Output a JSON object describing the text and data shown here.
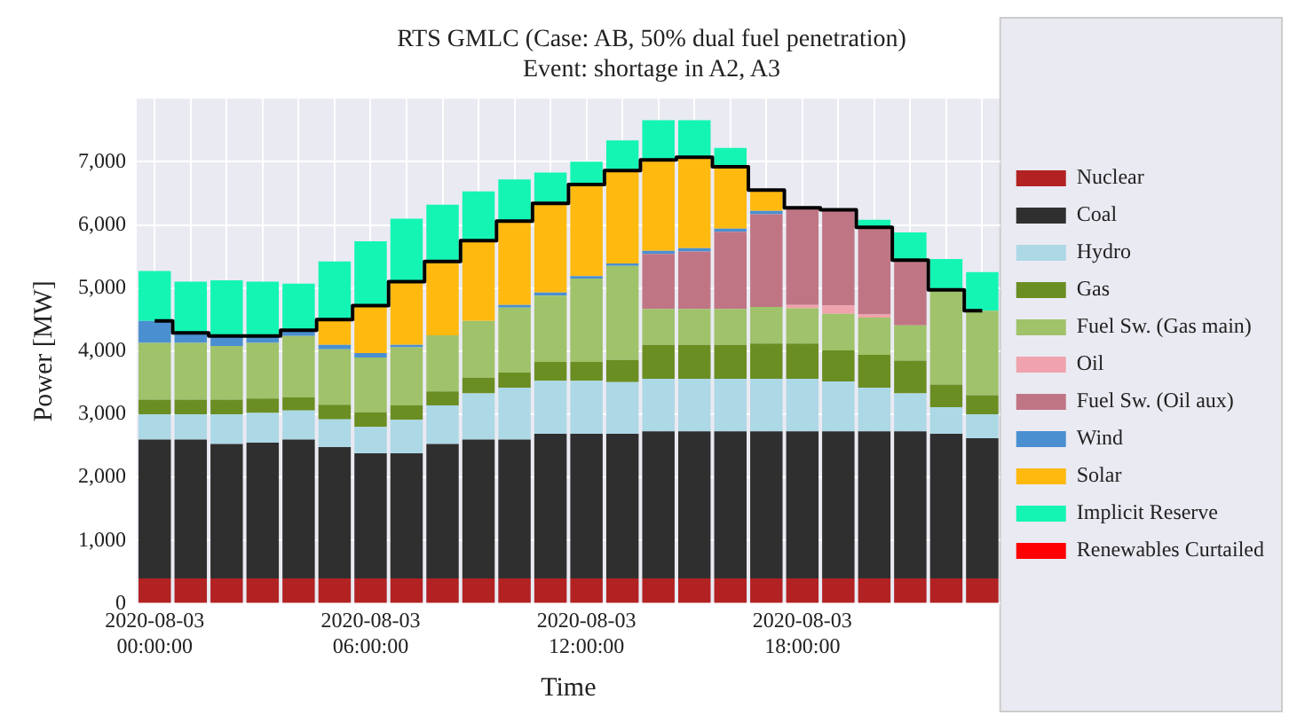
{
  "chart_data": {
    "type": "bar",
    "stacked": true,
    "title": "RTS GMLC (Case: AB, 50% dual fuel penetration)",
    "subtitle": "Event: shortage in A2, A3",
    "xlabel": "Time",
    "ylabel": "Power [MW]",
    "categories": [
      "2020-08-03 00:00:00",
      null,
      null,
      null,
      null,
      null,
      "2020-08-03 06:00:00",
      null,
      null,
      null,
      null,
      null,
      "2020-08-03 12:00:00",
      null,
      null,
      null,
      null,
      null,
      "2020-08-03 18:00:00",
      null,
      null,
      null,
      null,
      null
    ],
    "series": [
      {
        "name": "Nuclear",
        "color": "#b22222",
        "values": [
          400,
          400,
          400,
          400,
          400,
          400,
          400,
          400,
          400,
          400,
          400,
          400,
          400,
          400,
          400,
          400,
          400,
          400,
          400,
          400,
          400,
          400,
          400,
          400
        ]
      },
      {
        "name": "Coal",
        "color": "#2f2f2f",
        "values": [
          2200,
          2200,
          2130,
          2150,
          2200,
          2080,
          1980,
          1980,
          2130,
          2200,
          2200,
          2290,
          2290,
          2290,
          2330,
          2330,
          2330,
          2330,
          2330,
          2330,
          2330,
          2330,
          2290,
          2220
        ]
      },
      {
        "name": "Hydro",
        "color": "#add8e6",
        "values": [
          400,
          400,
          470,
          470,
          460,
          440,
          420,
          530,
          610,
          730,
          820,
          840,
          840,
          820,
          830,
          830,
          830,
          830,
          830,
          790,
          690,
          600,
          420,
          380
        ]
      },
      {
        "name": "Gas",
        "color": "#6b8e23",
        "values": [
          230,
          230,
          230,
          230,
          210,
          230,
          230,
          230,
          220,
          250,
          240,
          300,
          300,
          350,
          540,
          540,
          540,
          560,
          560,
          490,
          520,
          520,
          360,
          300
        ]
      },
      {
        "name": "Fuel Sw. (Gas main)",
        "color": "#9fc26a",
        "values": [
          900,
          900,
          850,
          880,
          970,
          880,
          870,
          920,
          890,
          900,
          1030,
          1050,
          1320,
          1490,
          570,
          570,
          570,
          580,
          560,
          580,
          590,
          560,
          1500,
          1340
        ]
      },
      {
        "name": "Oil",
        "color": "#f0a3ac",
        "values": [
          0,
          0,
          0,
          0,
          0,
          0,
          0,
          0,
          0,
          0,
          0,
          0,
          0,
          0,
          0,
          0,
          0,
          0,
          50,
          130,
          50,
          0,
          0,
          0
        ]
      },
      {
        "name": "Fuel Sw. (Oil aux)",
        "color": "#c07585",
        "values": [
          0,
          0,
          0,
          0,
          0,
          0,
          0,
          0,
          0,
          0,
          0,
          0,
          0,
          0,
          870,
          910,
          1220,
          1470,
          1550,
          1540,
          1380,
          1030,
          0,
          0
        ]
      },
      {
        "name": "Wind",
        "color": "#4a8fd0",
        "values": [
          350,
          160,
          160,
          110,
          90,
          70,
          70,
          40,
          0,
          0,
          40,
          50,
          40,
          40,
          50,
          50,
          50,
          50,
          0,
          0,
          0,
          0,
          0,
          0
        ]
      },
      {
        "name": "Solar",
        "color": "#ffb90f",
        "values": [
          0,
          0,
          0,
          0,
          0,
          400,
          750,
          1000,
          1170,
          1270,
          1330,
          1410,
          1450,
          1460,
          1440,
          1440,
          990,
          330,
          0,
          0,
          0,
          0,
          0,
          0
        ]
      },
      {
        "name": "Implicit Reserve",
        "color": "#14f5b4",
        "values": [
          790,
          810,
          880,
          860,
          740,
          920,
          1020,
          1000,
          900,
          780,
          660,
          490,
          360,
          490,
          630,
          590,
          290,
          0,
          0,
          0,
          120,
          440,
          490,
          610
        ]
      },
      {
        "name": "Renewables Curtailed",
        "color": "#ff0000",
        "values": [
          0,
          0,
          0,
          0,
          0,
          0,
          0,
          0,
          0,
          0,
          0,
          0,
          0,
          0,
          0,
          0,
          0,
          0,
          0,
          0,
          0,
          0,
          0,
          0
        ]
      },
      {
        "type": "step",
        "color": "#000000",
        "values": [
          4480,
          4290,
          4240,
          4240,
          4330,
          4500,
          4720,
          5100,
          5420,
          5750,
          6060,
          6340,
          6640,
          6860,
          7030,
          7070,
          6920,
          6550,
          6270,
          6240,
          5960,
          5440,
          4970,
          4640
        ]
      }
    ],
    "ylim": [
      0,
      8000
    ],
    "yticks": [
      {
        "value": 0,
        "label": "0"
      },
      {
        "value": 1000,
        "label": "1,000"
      },
      {
        "value": 2000,
        "label": "2,000"
      },
      {
        "value": 3000,
        "label": "3,000"
      },
      {
        "value": 4000,
        "label": "4,000"
      },
      {
        "value": 5000,
        "label": "5,000"
      },
      {
        "value": 6000,
        "label": "6,000"
      },
      {
        "value": 7000,
        "label": "7,000"
      }
    ],
    "grid": true,
    "legend": "right"
  }
}
